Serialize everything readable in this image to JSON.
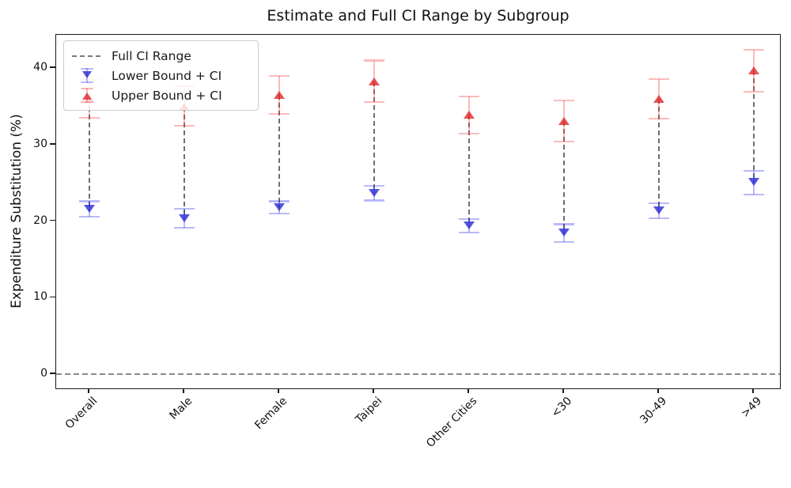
{
  "chart_data": {
    "type": "scatter",
    "title": "Estimate and Full CI Range by Subgroup",
    "xlabel": "",
    "ylabel": "Expenditure Substitution (%)",
    "categories": [
      "Overall",
      "Male",
      "Female",
      "Taipei",
      "Other Cities",
      "<30",
      "30-49",
      ">49"
    ],
    "yticks": [
      0,
      10,
      20,
      30,
      40
    ],
    "ylim": [
      -2.1,
      44.5
    ],
    "grid": false,
    "zero_reference_line": 0,
    "legend_position": "upper-left",
    "range_line": {
      "name": "Full CI Range",
      "style": "dashed",
      "color": "#777777"
    },
    "series": [
      {
        "name": "Lower Bound + CI",
        "marker": "triangle-down",
        "color": "#2828d2",
        "color_light": "#b8b8f4",
        "values": [
          21.6,
          20.4,
          21.8,
          23.7,
          19.4,
          18.5,
          21.4,
          25.1
        ],
        "ci_low": [
          20.6,
          19.1,
          21.0,
          22.7,
          18.5,
          17.3,
          20.4,
          23.5
        ],
        "ci_high": [
          22.6,
          21.6,
          22.6,
          24.6,
          20.3,
          19.6,
          22.3,
          26.6
        ]
      },
      {
        "name": "Upper Bound + CI",
        "marker": "triangle-up",
        "color": "#e12828",
        "color_light": "#f9bcbc",
        "values": [
          36.0,
          35.0,
          36.5,
          38.3,
          33.9,
          33.1,
          36.0,
          39.7
        ],
        "ci_low": [
          33.5,
          32.5,
          34.0,
          35.6,
          31.4,
          30.4,
          33.4,
          36.9
        ],
        "ci_high": [
          38.5,
          37.6,
          39.0,
          41.0,
          36.3,
          35.8,
          38.6,
          42.4
        ]
      }
    ]
  },
  "legend": {
    "items": [
      {
        "label": "Full CI Range"
      },
      {
        "label": "Lower Bound + CI"
      },
      {
        "label": "Upper Bound + CI"
      }
    ]
  },
  "colors": {
    "lower_marker": "rgba(40,40,210,0.8)",
    "lower_ci": "rgba(40,40,230,0.32)",
    "upper_marker": "rgba(225,40,40,0.8)",
    "upper_ci": "rgba(240,60,60,0.35)",
    "range_dash": "#6f6f6f",
    "zero_dash": "#8a8a8a"
  }
}
